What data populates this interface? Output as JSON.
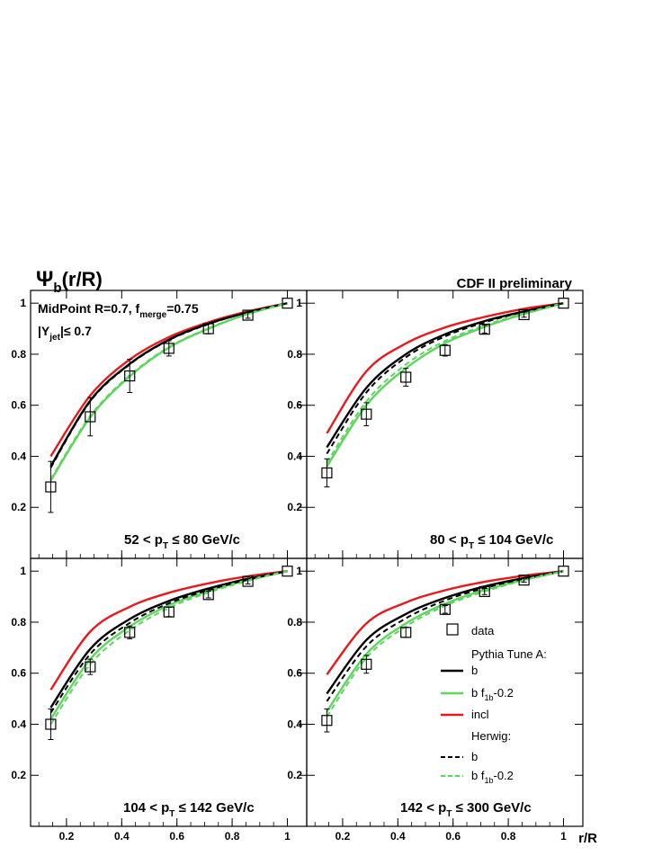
{
  "figure": {
    "y_title": "Ψ",
    "y_title_sub": "b",
    "y_title_rest": "(r/R)",
    "x_title": "r/R",
    "corner_label": "CDF II preliminary",
    "algo_main": "MidPoint R=0.7, f",
    "algo_sub": "merge",
    "algo_rest": "=0.75",
    "rap_pre": "|Y",
    "rap_sub": "jet",
    "rap_rest": "|≤ 0.7",
    "panel_texts": [
      {
        "pre": "52 < p",
        "sub": "T",
        "rest": " ≤ 80 GeV/c"
      },
      {
        "pre": "80 < p",
        "sub": "T",
        "rest": " ≤ 104 GeV/c"
      },
      {
        "pre": "104 < p",
        "sub": "T",
        "rest": " ≤ 142 GeV/c"
      },
      {
        "pre": "142 < p",
        "sub": "T",
        "rest": " ≤ 300 GeV/c"
      }
    ],
    "legend": {
      "data": "data",
      "pythia_header": "Pythia Tune A:",
      "pythia_b": "b",
      "pythia_bf_pre": "b f",
      "pythia_bf_sub": "1b",
      "pythia_bf_rest": "-0.2",
      "incl": "incl",
      "herwig_header": "Herwig:",
      "herwig_b": "b",
      "herwig_bf_pre": "b f",
      "herwig_bf_sub": "1b",
      "herwig_bf_rest": "-0.2"
    },
    "colors": {
      "black": "#000000",
      "green": "#5cd65c",
      "red": "#e8191c"
    }
  },
  "chart_data": [
    {
      "type": "line",
      "panel": "52 < pT ≤ 80 GeV/c",
      "x": [
        0.143,
        0.286,
        0.429,
        0.571,
        0.714,
        0.857,
        1.0
      ],
      "xlim": [
        0.07,
        1.07
      ],
      "ylim": [
        0,
        1.05
      ],
      "xticks": [
        0.2,
        0.4,
        0.6,
        0.8,
        1
      ],
      "yticks": [
        0.2,
        0.4,
        0.6,
        0.8,
        1
      ],
      "data": {
        "y": [
          0.28,
          0.555,
          0.715,
          0.823,
          0.9,
          0.953,
          1.0
        ],
        "yerr": [
          0.1,
          0.075,
          0.065,
          0.03,
          0.02,
          0.012,
          0.0
        ]
      },
      "series": [
        {
          "name": "incl",
          "color": "red",
          "dash": false,
          "y": [
            0.4,
            0.638,
            0.779,
            0.867,
            0.925,
            0.968,
            1.0
          ]
        },
        {
          "name": "Pythia b",
          "color": "black",
          "dash": false,
          "y": [
            0.36,
            0.618,
            0.762,
            0.857,
            0.92,
            0.964,
            1.0
          ]
        },
        {
          "name": "Pythia b f1b-0.2",
          "color": "green",
          "dash": false,
          "y": [
            0.305,
            0.553,
            0.713,
            0.826,
            0.9,
            0.958,
            1.0
          ]
        },
        {
          "name": "Herwig b",
          "color": "black",
          "dash": true,
          "y": [
            0.355,
            0.615,
            0.76,
            0.855,
            0.918,
            0.964,
            1.0
          ]
        },
        {
          "name": "Herwig b f1b-0.2",
          "color": "green",
          "dash": true,
          "y": [
            0.31,
            0.558,
            0.717,
            0.828,
            0.902,
            0.958,
            1.0
          ]
        }
      ]
    },
    {
      "type": "line",
      "panel": "80 < pT ≤ 104 GeV/c",
      "x": [
        0.143,
        0.286,
        0.429,
        0.571,
        0.714,
        0.857,
        1.0
      ],
      "xlim": [
        0.07,
        1.07
      ],
      "ylim": [
        0,
        1.05
      ],
      "xticks": [
        0.2,
        0.4,
        0.6,
        0.8,
        1
      ],
      "yticks": [
        0.2,
        0.4,
        0.6,
        0.8,
        1
      ],
      "data": {
        "y": [
          0.335,
          0.565,
          0.71,
          0.815,
          0.898,
          0.955,
          1.0
        ],
        "yerr": [
          0.055,
          0.045,
          0.035,
          0.022,
          0.015,
          0.01,
          0.0
        ]
      },
      "series": [
        {
          "name": "incl",
          "color": "red",
          "dash": false,
          "y": [
            0.49,
            0.733,
            0.842,
            0.905,
            0.946,
            0.978,
            1.0
          ]
        },
        {
          "name": "Pythia b",
          "color": "black",
          "dash": false,
          "y": [
            0.435,
            0.668,
            0.8,
            0.878,
            0.93,
            0.968,
            1.0
          ]
        },
        {
          "name": "Pythia b f1b-0.2",
          "color": "green",
          "dash": false,
          "y": [
            0.36,
            0.6,
            0.745,
            0.843,
            0.907,
            0.958,
            1.0
          ]
        },
        {
          "name": "Herwig b",
          "color": "black",
          "dash": true,
          "y": [
            0.41,
            0.65,
            0.788,
            0.87,
            0.925,
            0.966,
            1.0
          ]
        },
        {
          "name": "Herwig b f1b-0.2",
          "color": "green",
          "dash": true,
          "y": [
            0.375,
            0.615,
            0.76,
            0.852,
            0.913,
            0.96,
            1.0
          ]
        }
      ]
    },
    {
      "type": "line",
      "panel": "104 < pT ≤ 142 GeV/c",
      "x": [
        0.143,
        0.286,
        0.429,
        0.571,
        0.714,
        0.857,
        1.0
      ],
      "xlim": [
        0.07,
        1.07
      ],
      "ylim": [
        0,
        1.05
      ],
      "xticks": [
        0.2,
        0.4,
        0.6,
        0.8,
        1
      ],
      "yticks": [
        0.2,
        0.4,
        0.6,
        0.8,
        1
      ],
      "data": {
        "y": [
          0.4,
          0.625,
          0.76,
          0.84,
          0.908,
          0.96,
          1.0
        ],
        "yerr": [
          0.06,
          0.03,
          0.025,
          0.018,
          0.013,
          0.01,
          0.0
        ]
      },
      "series": [
        {
          "name": "incl",
          "color": "red",
          "dash": false,
          "y": [
            0.535,
            0.763,
            0.86,
            0.915,
            0.952,
            0.98,
            1.0
          ]
        },
        {
          "name": "Pythia b",
          "color": "black",
          "dash": false,
          "y": [
            0.465,
            0.695,
            0.812,
            0.883,
            0.932,
            0.97,
            1.0
          ]
        },
        {
          "name": "Pythia b f1b-0.2",
          "color": "green",
          "dash": false,
          "y": [
            0.42,
            0.655,
            0.783,
            0.866,
            0.922,
            0.965,
            1.0
          ]
        },
        {
          "name": "Herwig b",
          "color": "black",
          "dash": true,
          "y": [
            0.445,
            0.675,
            0.797,
            0.874,
            0.926,
            0.967,
            1.0
          ]
        },
        {
          "name": "Herwig b f1b-0.2",
          "color": "green",
          "dash": true,
          "y": [
            0.4,
            0.635,
            0.768,
            0.856,
            0.916,
            0.962,
            1.0
          ]
        }
      ]
    },
    {
      "type": "line",
      "panel": "142 < pT ≤ 300 GeV/c",
      "x": [
        0.143,
        0.286,
        0.429,
        0.571,
        0.714,
        0.857,
        1.0
      ],
      "xlim": [
        0.07,
        1.07
      ],
      "ylim": [
        0,
        1.05
      ],
      "xticks": [
        0.2,
        0.4,
        0.6,
        0.8,
        1
      ],
      "yticks": [
        0.2,
        0.4,
        0.6,
        0.8,
        1
      ],
      "data": {
        "y": [
          0.415,
          0.635,
          0.76,
          0.85,
          0.92,
          0.965,
          1.0
        ],
        "yerr": [
          0.045,
          0.035,
          0.02,
          0.015,
          0.012,
          0.008,
          0.0
        ]
      },
      "series": [
        {
          "name": "incl",
          "color": "red",
          "dash": false,
          "y": [
            0.595,
            0.795,
            0.877,
            0.925,
            0.958,
            0.982,
            1.0
          ]
        },
        {
          "name": "Pythia b",
          "color": "black",
          "dash": false,
          "y": [
            0.52,
            0.73,
            0.832,
            0.895,
            0.94,
            0.973,
            1.0
          ]
        },
        {
          "name": "Pythia b f1b-0.2",
          "color": "green",
          "dash": false,
          "y": [
            0.45,
            0.675,
            0.795,
            0.872,
            0.926,
            0.966,
            1.0
          ]
        },
        {
          "name": "Herwig b",
          "color": "black",
          "dash": true,
          "y": [
            0.49,
            0.705,
            0.815,
            0.885,
            0.934,
            0.97,
            1.0
          ]
        },
        {
          "name": "Herwig b f1b-0.2",
          "color": "green",
          "dash": true,
          "y": [
            0.43,
            0.66,
            0.783,
            0.864,
            0.92,
            0.964,
            1.0
          ]
        }
      ]
    }
  ]
}
